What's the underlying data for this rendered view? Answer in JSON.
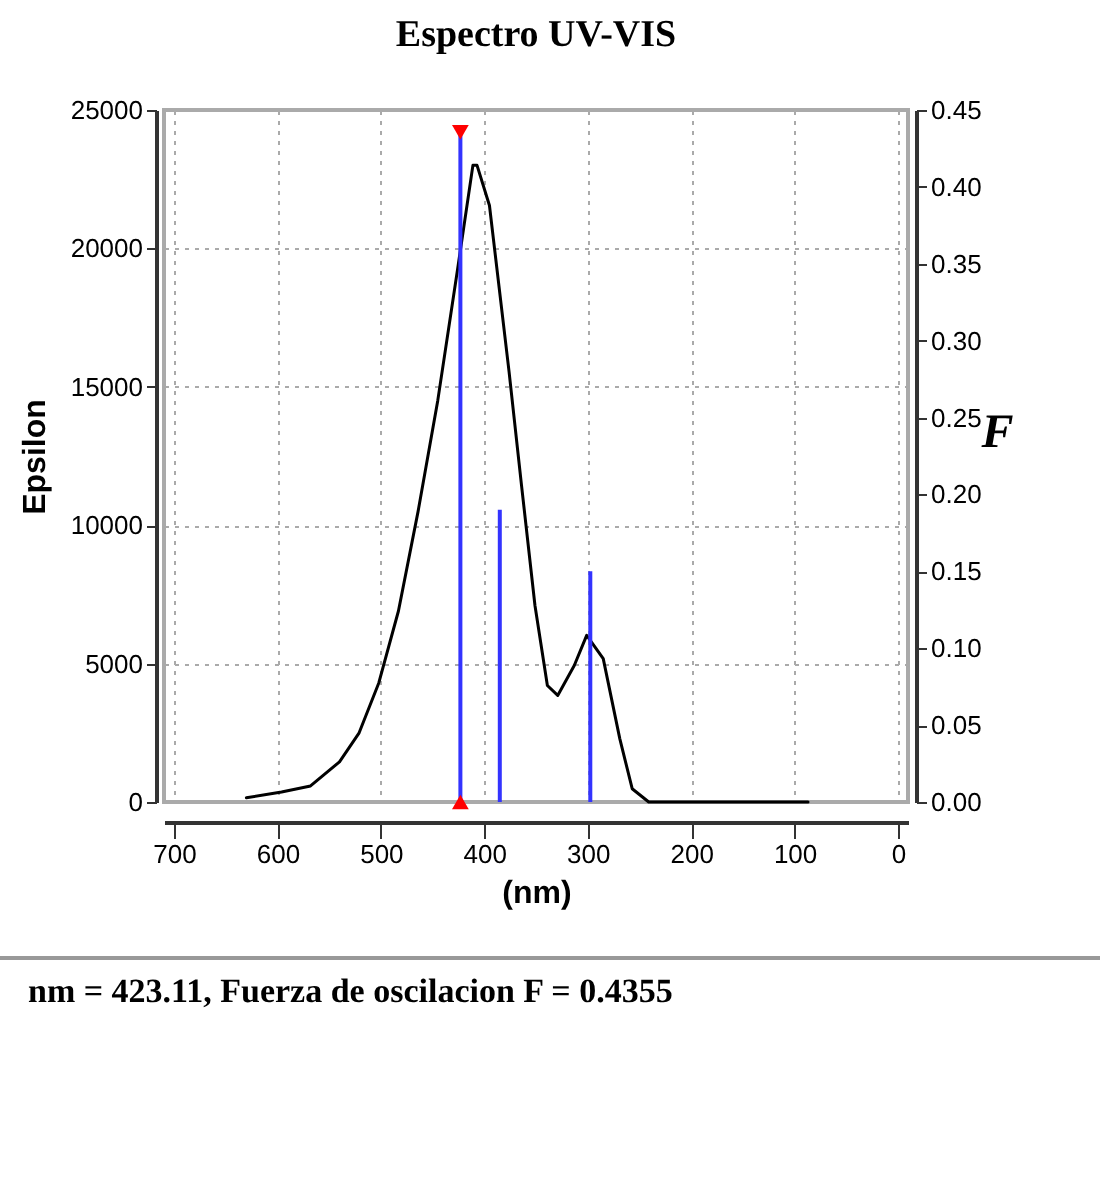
{
  "chart_data": {
    "type": "line",
    "title": "Espectro UV-VIS",
    "xlabel": "(nm)",
    "ylabel": "Epsilon",
    "y2label": "F",
    "xlim": [
      700,
      0
    ],
    "xticks": [
      700,
      600,
      500,
      400,
      300,
      200,
      100,
      0
    ],
    "ylim": [
      0,
      25000
    ],
    "yticks": [
      0,
      5000,
      10000,
      15000,
      20000,
      25000
    ],
    "y2lim": [
      0,
      0.45
    ],
    "y2ticks": [
      {
        "value": 0,
        "label": "0.00"
      },
      0.05,
      {
        "value": 0.1,
        "label": "0.10"
      },
      0.15,
      {
        "value": 0.2,
        "label": "0.20"
      },
      0.25,
      {
        "value": 0.3,
        "label": "0.30"
      },
      0.35,
      {
        "value": 0.4,
        "label": "0.40"
      },
      0.45
    ],
    "grid": true,
    "series": [
      {
        "color": "#000000",
        "x": [
          630,
          596,
          568,
          540,
          521,
          502,
          483,
          464,
          445,
          426,
          411,
          407,
          395,
          376,
          364,
          351,
          339,
          329,
          313,
          301,
          285,
          269,
          257,
          241,
          87
        ],
        "values": [
          150,
          360,
          580,
          1450,
          2500,
          4300,
          6900,
          10500,
          14500,
          19200,
          23000,
          23000,
          21550,
          15530,
          11440,
          7100,
          4210,
          3850,
          4930,
          6020,
          5180,
          2290,
          480,
          0,
          0
        ]
      },
      {
        "type": "bar",
        "axis": "y2",
        "color": "#3333ff",
        "x": [
          423.11,
          385,
          297.5
        ],
        "values": [
          0.4355,
          0.19,
          0.15
        ]
      },
      {
        "type": "scatter",
        "axis": "y2",
        "color": "#ff0000",
        "marker": "triangle",
        "x": [
          423.11,
          423.11
        ],
        "values": [
          0.4355,
          0
        ]
      }
    ],
    "annotations": [
      "nm = 423.11, Fuerza de oscilacion F = 0.4355"
    ]
  }
}
